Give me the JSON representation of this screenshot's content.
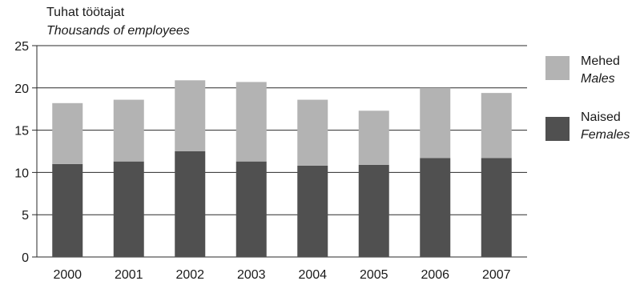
{
  "chart_data": {
    "type": "bar",
    "stacked": true,
    "ylabel": "Tuhat töötajat",
    "ylabel_en": "Thousands of employees",
    "categories": [
      "2000",
      "2001",
      "2002",
      "2003",
      "2004",
      "2005",
      "2006",
      "2007"
    ],
    "series": [
      {
        "name": "Naised",
        "name_en": "Females",
        "color": "#505050",
        "values": [
          11.0,
          11.3,
          12.5,
          11.3,
          10.8,
          10.9,
          11.7,
          11.7
        ]
      },
      {
        "name": "Mehed",
        "name_en": "Males",
        "color": "#b3b3b3",
        "values": [
          7.2,
          7.3,
          8.4,
          9.4,
          7.8,
          6.4,
          8.3,
          7.7
        ]
      }
    ],
    "ylim": [
      0,
      25
    ],
    "yticks": [
      0,
      5,
      10,
      15,
      20,
      25
    ],
    "grid": true,
    "legend_position": "right"
  },
  "legend": {
    "males": {
      "label": "Mehed",
      "label_en": "Males"
    },
    "females": {
      "label": "Naised",
      "label_en": "Females"
    }
  }
}
